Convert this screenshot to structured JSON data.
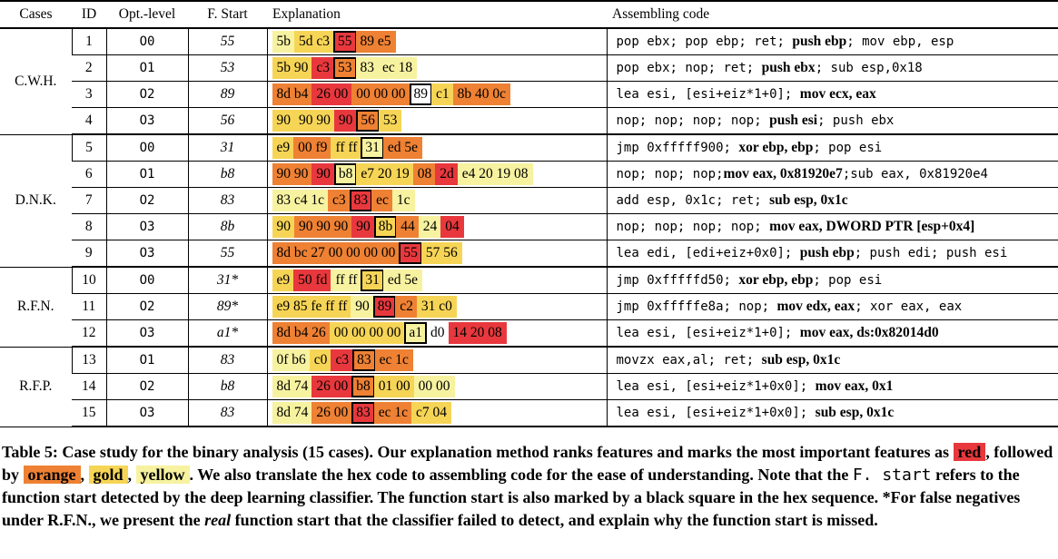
{
  "colors": {
    "red": "#e8383d",
    "orange": "#ee8133",
    "gold": "#f6d556",
    "yellow": "#f7f2a0"
  },
  "headers": {
    "cases": "Cases",
    "id": "ID",
    "opt": "Opt.-level",
    "fstart": "F. Start",
    "explanation": "Explanation",
    "asm": "Assembling code"
  },
  "groups": [
    {
      "name": "C.W.H.",
      "rows": [
        {
          "id": "1",
          "opt": "O0",
          "fs": "55",
          "tokens": [
            {
              "t": "5b",
              "c": "yellow"
            },
            {
              "t": "5d c3",
              "c": "gold"
            },
            {
              "t": "55",
              "c": "red",
              "s": true
            },
            {
              "t": "89 e5",
              "c": "orange"
            }
          ],
          "asm": [
            {
              "t": "pop ebx; pop ebp; ret; "
            },
            {
              "t": "push ebp",
              "b": true
            },
            {
              "t": "; mov ebp, esp"
            }
          ]
        },
        {
          "id": "2",
          "opt": "O1",
          "fs": "53",
          "tokens": [
            {
              "t": "5b 90",
              "c": "gold"
            },
            {
              "t": "c3",
              "c": "red"
            },
            {
              "t": "53",
              "c": "orange",
              "s": true
            },
            {
              "t": "83",
              "c": "yellow"
            },
            {
              "t": "ec 18",
              "c": "yellow"
            }
          ],
          "asm": [
            {
              "t": "pop ebx; nop; ret; "
            },
            {
              "t": "push ebx",
              "b": true
            },
            {
              "t": "; sub esp,0x18"
            }
          ]
        },
        {
          "id": "3",
          "opt": "O2",
          "fs": "89",
          "tokens": [
            {
              "t": "8d b4",
              "c": "orange"
            },
            {
              "t": "26 00",
              "c": "red"
            },
            {
              "t": "00 00 00",
              "c": "orange"
            },
            {
              "t": "89",
              "c": "none",
              "s": true
            },
            {
              "t": "c1",
              "c": "gold"
            },
            {
              "t": "8b 40 0c",
              "c": "orange"
            }
          ],
          "asm": [
            {
              "t": "lea esi, [esi+eiz*1+0]; "
            },
            {
              "t": "mov ecx, eax",
              "b": true
            }
          ]
        },
        {
          "id": "4",
          "opt": "O3",
          "fs": "56",
          "tokens": [
            {
              "t": "90",
              "c": "gold"
            },
            {
              "t": "90 90",
              "c": "gold"
            },
            {
              "t": "90",
              "c": "red"
            },
            {
              "t": "56",
              "c": "orange",
              "s": true
            },
            {
              "t": "53",
              "c": "gold"
            }
          ],
          "asm": [
            {
              "t": "nop; nop; nop; nop; "
            },
            {
              "t": "push esi",
              "b": true
            },
            {
              "t": "; push ebx"
            }
          ]
        }
      ]
    },
    {
      "name": "D.N.K.",
      "rows": [
        {
          "id": "5",
          "opt": "O0",
          "fs": "31",
          "tokens": [
            {
              "t": "e9",
              "c": "gold"
            },
            {
              "t": "00 f9",
              "c": "orange"
            },
            {
              "t": "ff ff",
              "c": "gold"
            },
            {
              "t": "31",
              "c": "yellow",
              "s": true
            },
            {
              "t": "ed 5e",
              "c": "orange"
            }
          ],
          "asm": [
            {
              "t": "jmp 0xfffff900; "
            },
            {
              "t": "xor ebp, ebp",
              "b": true
            },
            {
              "t": "; pop esi"
            }
          ]
        },
        {
          "id": "6",
          "opt": "O1",
          "fs": "b8",
          "tokens": [
            {
              "t": "90 90",
              "c": "orange"
            },
            {
              "t": "90",
              "c": "red"
            },
            {
              "t": "b8",
              "c": "yellow",
              "s": true
            },
            {
              "t": "e7 20 19",
              "c": "gold"
            },
            {
              "t": "08",
              "c": "orange"
            },
            {
              "t": "2d",
              "c": "red"
            },
            {
              "t": "e4 20 19 08",
              "c": "yellow"
            }
          ],
          "asm": [
            {
              "t": "nop; nop; nop;"
            },
            {
              "t": "mov eax, 0x81920e7",
              "b": true
            },
            {
              "t": ";sub eax, 0x81920e4"
            }
          ]
        },
        {
          "id": "7",
          "opt": "O2",
          "fs": "83",
          "tokens": [
            {
              "t": "83 c4 1c",
              "c": "yellow"
            },
            {
              "t": "c3",
              "c": "orange"
            },
            {
              "t": "83",
              "c": "red",
              "s": true
            },
            {
              "t": "ec",
              "c": "orange"
            },
            {
              "t": "1c",
              "c": "yellow"
            }
          ],
          "asm": [
            {
              "t": "add esp, 0x1c; ret; "
            },
            {
              "t": "sub esp, 0x1c",
              "b": true
            }
          ]
        },
        {
          "id": "8",
          "opt": "O3",
          "fs": "8b",
          "tokens": [
            {
              "t": "90",
              "c": "gold"
            },
            {
              "t": "90 90 90",
              "c": "orange"
            },
            {
              "t": "90",
              "c": "red"
            },
            {
              "t": "8b",
              "c": "gold",
              "s": true
            },
            {
              "t": "44",
              "c": "orange"
            },
            {
              "t": "24",
              "c": "yellow"
            },
            {
              "t": "04",
              "c": "red"
            }
          ],
          "asm": [
            {
              "t": "nop; nop; nop; nop; "
            },
            {
              "t": "mov eax, DWORD PTR [esp+0x4]",
              "b": true
            }
          ]
        },
        {
          "id": "9",
          "opt": "O3",
          "fs": "55",
          "tokens": [
            {
              "t": "8d bc 27 00 00 00 00",
              "c": "orange"
            },
            {
              "t": "55",
              "c": "red",
              "s": true
            },
            {
              "t": "57 56",
              "c": "gold"
            }
          ],
          "asm": [
            {
              "t": "lea edi, [edi+eiz+0x0]; "
            },
            {
              "t": "push ebp",
              "b": true
            },
            {
              "t": "; push edi; push esi"
            }
          ]
        }
      ]
    },
    {
      "name": "R.F.N.",
      "rows": [
        {
          "id": "10",
          "opt": "O0",
          "fs": "31*",
          "tokens": [
            {
              "t": "e9",
              "c": "gold"
            },
            {
              "t": "50 fd",
              "c": "red"
            },
            {
              "t": "ff ff",
              "c": "yellow"
            },
            {
              "t": "31",
              "c": "gold",
              "s": true
            },
            {
              "t": "ed 5e",
              "c": "yellow"
            }
          ],
          "asm": [
            {
              "t": "jmp 0xfffffd50; "
            },
            {
              "t": "xor ebp, ebp",
              "b": true
            },
            {
              "t": "; pop esi"
            }
          ]
        },
        {
          "id": "11",
          "opt": "O2",
          "fs": "89*",
          "tokens": [
            {
              "t": "e9 85 fe ff ff",
              "c": "gold"
            },
            {
              "t": "90",
              "c": "yellow"
            },
            {
              "t": "89",
              "c": "red",
              "s": true
            },
            {
              "t": "c2",
              "c": "orange"
            },
            {
              "t": "31 c0",
              "c": "gold"
            }
          ],
          "asm": [
            {
              "t": "jmp 0xfffffe8a; nop; "
            },
            {
              "t": "mov edx, eax",
              "b": true
            },
            {
              "t": "; xor eax, eax"
            }
          ]
        },
        {
          "id": "12",
          "opt": "O3",
          "fs": "a1*",
          "tokens": [
            {
              "t": "8d b4 26",
              "c": "orange"
            },
            {
              "t": "00 00 00 00",
              "c": "gold"
            },
            {
              "t": "a1",
              "c": "yellow",
              "s": true
            },
            {
              "t": "d0",
              "c": "none"
            },
            {
              "t": "14 20 08",
              "c": "red"
            }
          ],
          "asm": [
            {
              "t": "lea esi, [esi+eiz*1+0]; "
            },
            {
              "t": "mov eax, ds:0x82014d0",
              "b": true
            }
          ]
        }
      ]
    },
    {
      "name": "R.F.P.",
      "rows": [
        {
          "id": "13",
          "opt": "O1",
          "fs": "83",
          "tokens": [
            {
              "t": "0f b6",
              "c": "yellow"
            },
            {
              "t": "c0",
              "c": "gold"
            },
            {
              "t": "c3",
              "c": "red"
            },
            {
              "t": "83",
              "c": "orange",
              "s": true
            },
            {
              "t": "ec 1c",
              "c": "orange"
            }
          ],
          "asm": [
            {
              "t": "movzx eax,al; ret; "
            },
            {
              "t": "sub esp, 0x1c",
              "b": true
            }
          ]
        },
        {
          "id": "14",
          "opt": "O2",
          "fs": "b8",
          "tokens": [
            {
              "t": "8d 74",
              "c": "yellow"
            },
            {
              "t": "26 00",
              "c": "red"
            },
            {
              "t": "b8",
              "c": "orange",
              "s": true
            },
            {
              "t": "01 00",
              "c": "gold"
            },
            {
              "t": "00 00",
              "c": "yellow"
            }
          ],
          "asm": [
            {
              "t": "lea esi, [esi+eiz*1+0x0]; "
            },
            {
              "t": "mov eax, 0x1",
              "b": true
            }
          ]
        },
        {
          "id": "15",
          "opt": "O3",
          "fs": "83",
          "tokens": [
            {
              "t": "8d 74",
              "c": "yellow"
            },
            {
              "t": "26 00",
              "c": "orange"
            },
            {
              "t": "83",
              "c": "red",
              "s": true
            },
            {
              "t": "ec 1c",
              "c": "orange"
            },
            {
              "t": "c7 04",
              "c": "gold"
            }
          ],
          "asm": [
            {
              "t": "lea esi, [esi+eiz*1+0x0]; "
            },
            {
              "t": "sub esp, 0x1c",
              "b": true
            }
          ]
        }
      ]
    }
  ],
  "caption": {
    "p1": "Table 5: Case study for the binary analysis (15 cases). Our explanation method ranks features and marks the most important features as ",
    "red": "red",
    "p2": ", followed by ",
    "orange": "orange",
    "sep": ", ",
    "gold": "gold",
    "yellow": "yellow",
    "p3": ". We also translate the hex code to assembling code for the ease of understanding. Note that the ",
    "mono": "F. start",
    "p4": " refers to the function start detected by the deep learning classifier. The function start is also marked by a black square in the hex sequence. *For false negatives under R.F.N., we present the ",
    "real": "real",
    "p5": " function start that the classifier failed to detect, and explain why the function start is missed."
  }
}
